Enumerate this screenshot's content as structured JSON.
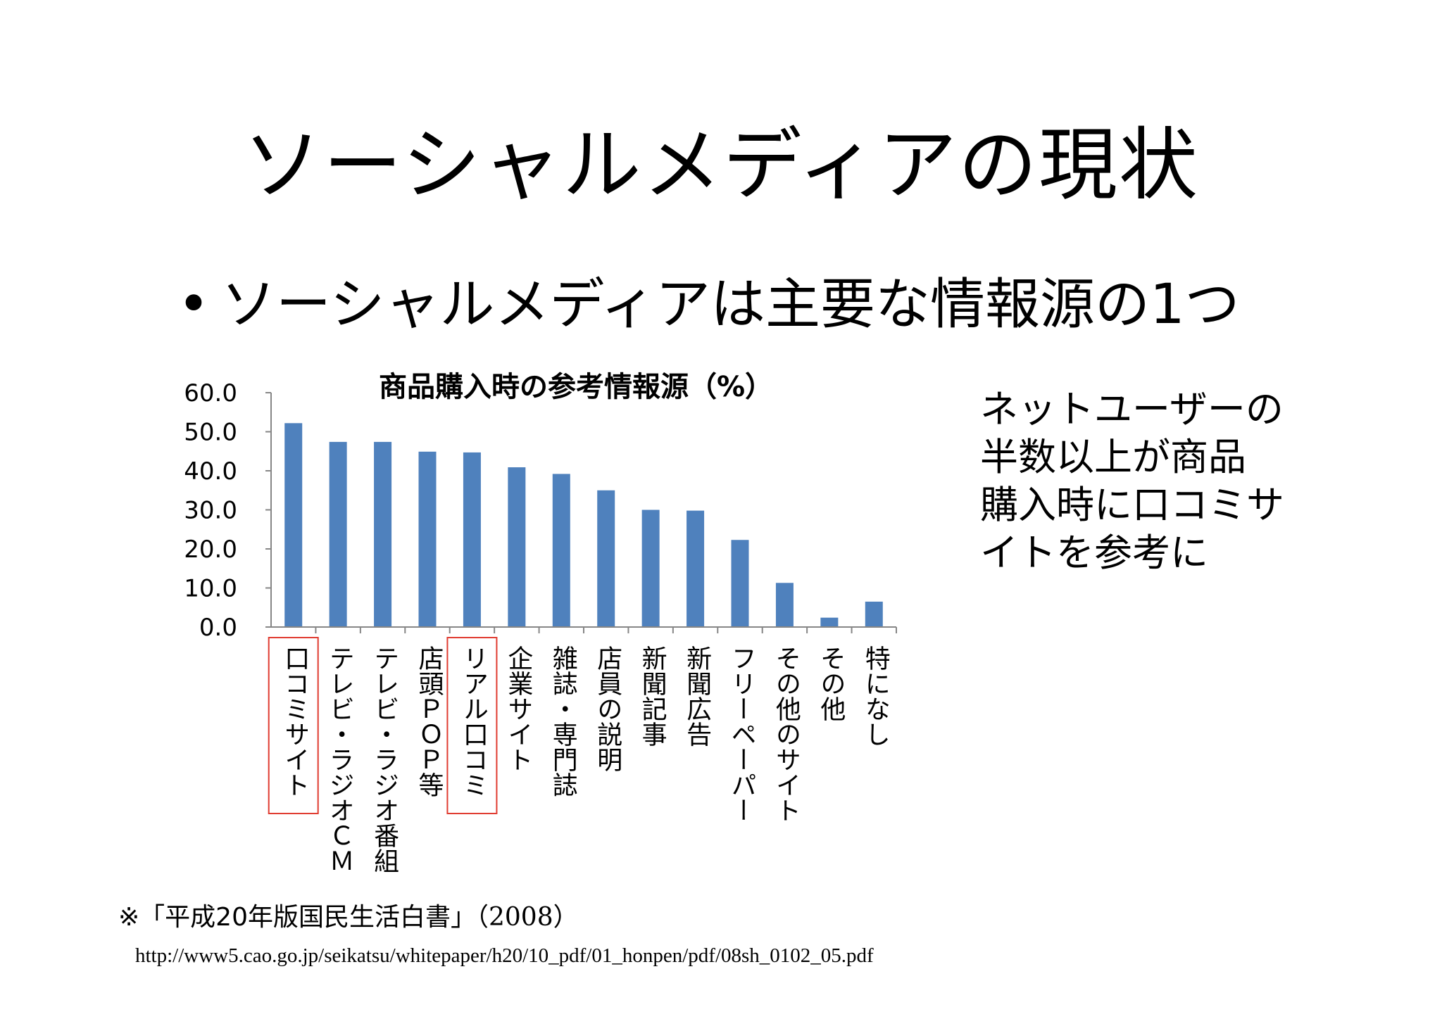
{
  "slide": {
    "title": "ソーシャルメディアの現状",
    "bullet_symbol": "•",
    "bullet_text": "ソーシャルメディアは主要な情報源の1つ"
  },
  "chart_data": {
    "type": "bar",
    "title": "商品購入時の参考情報源（%）",
    "categories": [
      "口コミサイト",
      "テレビ・ラジオＣＭ",
      "テレビ・ラジオ番組",
      "店頭ＰＯＰ等",
      "リアル口コミ",
      "企業サイト",
      "雑誌・専門誌",
      "店員の説明",
      "新聞記事",
      "新聞広告",
      "フリーペーパー",
      "その他のサイト",
      "その他",
      "特になし"
    ],
    "values": [
      52.2,
      47.4,
      47.4,
      44.9,
      44.7,
      40.9,
      39.2,
      35.0,
      30.0,
      29.8,
      22.3,
      11.3,
      2.4,
      6.5
    ],
    "ylim": [
      0,
      60
    ],
    "yticks": [
      "0.0",
      "10.0",
      "20.0",
      "30.0",
      "40.0",
      "50.0",
      "60.0"
    ],
    "highlighted_categories": [
      "口コミサイト",
      "リアル口コミ"
    ],
    "bar_color": "#4f81bd",
    "highlight_color": "#e03c31",
    "axis_color": "#868686",
    "grid": false,
    "legend": "none"
  },
  "side_note": {
    "lines": [
      "ネットユーザーの",
      "半数以上が商品",
      "購入時に口コミサ",
      "イトを参考に"
    ]
  },
  "source": {
    "citation": "※「平成20年版国民生活白書」",
    "year": "（2008）",
    "url": "http://www5.cao.go.jp/seikatsu/whitepaper/h20/10_pdf/01_honpen/pdf/08sh_0102_05.pdf"
  }
}
